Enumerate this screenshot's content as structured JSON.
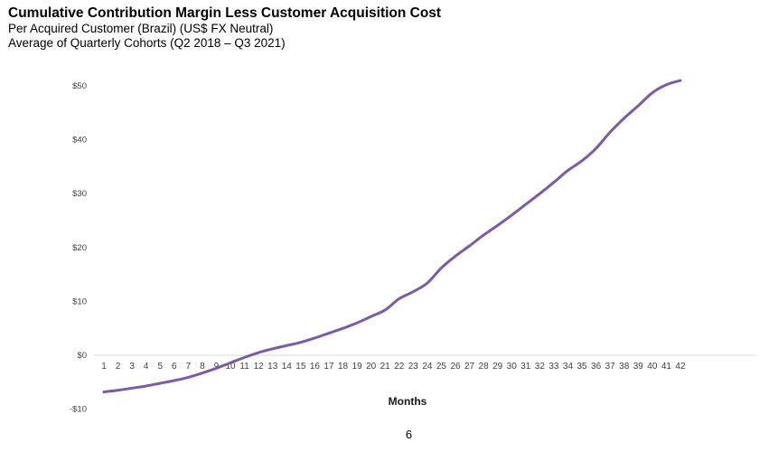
{
  "header": {
    "title": "Cumulative Contribution Margin Less Customer Acquisition Cost",
    "subtitle_1": "Per Acquired Customer (Brazil) (US$ FX Neutral)",
    "subtitle_2": "Average of Quarterly Cohorts (Q2 2018 – Q3 2021)"
  },
  "page_number": "6",
  "colors": {
    "line": "#7b5aa6",
    "axis": "#d9d9d9",
    "text": "#404040"
  },
  "chart_data": {
    "type": "line",
    "title": "Cumulative Contribution Margin Less Customer Acquisition Cost",
    "subtitle": "Per Acquired Customer (Brazil) (US$ FX Neutral)",
    "xlabel": "Months",
    "ylabel": "",
    "ylim": [
      -10,
      50
    ],
    "y_ticks": [
      50,
      40,
      30,
      20,
      10,
      0,
      -10
    ],
    "y_tick_labels": [
      "$50",
      "$40",
      "$30",
      "$20",
      "$10",
      "$0",
      "-$10"
    ],
    "x": [
      1,
      2,
      3,
      4,
      5,
      6,
      7,
      8,
      9,
      10,
      11,
      12,
      13,
      14,
      15,
      16,
      17,
      18,
      19,
      20,
      21,
      22,
      23,
      24,
      25,
      26,
      27,
      28,
      29,
      30,
      31,
      32,
      33,
      34,
      35,
      36,
      37,
      38,
      39,
      40,
      41,
      42
    ],
    "series": [
      {
        "name": "Cumulative Contribution Margin Less CAC",
        "values": [
          -6.8,
          -6.5,
          -6.1,
          -5.7,
          -5.2,
          -4.7,
          -4.1,
          -3.3,
          -2.4,
          -1.4,
          -0.4,
          0.5,
          1.2,
          1.8,
          2.4,
          3.2,
          4.1,
          5.0,
          6.0,
          7.2,
          8.4,
          10.5,
          11.8,
          13.4,
          16.2,
          18.4,
          20.3,
          22.3,
          24.1,
          26.0,
          28.0,
          30.0,
          32.1,
          34.3,
          36.1,
          38.4,
          41.4,
          44.0,
          46.3,
          48.7,
          50.2,
          51.0
        ]
      }
    ]
  }
}
